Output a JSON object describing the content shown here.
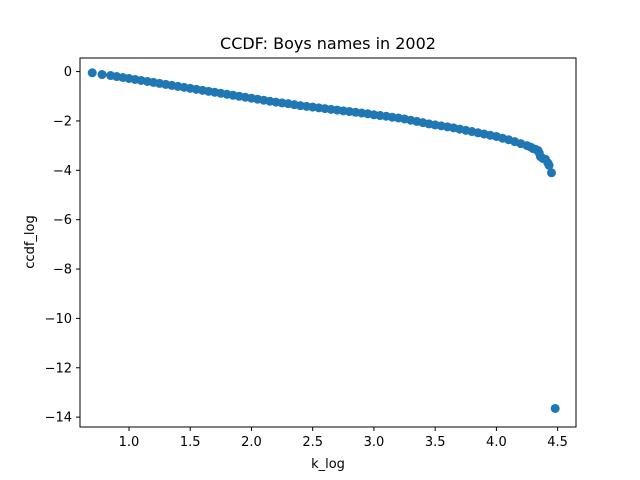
{
  "chart_data": {
    "type": "scatter",
    "title": "CCDF: Boys names in 2002",
    "xlabel": "k_log",
    "ylabel": "ccdf_log",
    "xlim": [
      0.6,
      4.65
    ],
    "ylim": [
      -14.4,
      0.55
    ],
    "xticks": [
      1.0,
      1.5,
      2.0,
      2.5,
      3.0,
      3.5,
      4.0,
      4.5
    ],
    "xtick_labels": [
      "1.0",
      "1.5",
      "2.0",
      "2.5",
      "3.0",
      "3.5",
      "4.0",
      "4.5"
    ],
    "yticks": [
      0,
      -2,
      -4,
      -6,
      -8,
      -10,
      -12,
      -14
    ],
    "ytick_labels": [
      "0",
      "−2",
      "−4",
      "−6",
      "−8",
      "−10",
      "−12",
      "−14"
    ],
    "grid": false,
    "marker_color": "#1f77b4",
    "series": [
      {
        "x": [
          0.7,
          0.78,
          0.85,
          0.9,
          0.95,
          1.0,
          1.05,
          1.1,
          1.15,
          1.2,
          1.25,
          1.3,
          1.35,
          1.4,
          1.45,
          1.5,
          1.55,
          1.6,
          1.65,
          1.7,
          1.75,
          1.8,
          1.85,
          1.9,
          1.95,
          2.0,
          2.05,
          2.1,
          2.15,
          2.2,
          2.25,
          2.3,
          2.35,
          2.4,
          2.45,
          2.5,
          2.55,
          2.6,
          2.65,
          2.7,
          2.75,
          2.8,
          2.85,
          2.9,
          2.95,
          3.0,
          3.05,
          3.1,
          3.15,
          3.2,
          3.25,
          3.3,
          3.35,
          3.4,
          3.45,
          3.5,
          3.55,
          3.6,
          3.65,
          3.7,
          3.75,
          3.8,
          3.85,
          3.9,
          3.95,
          4.0,
          4.05,
          4.1,
          4.15,
          4.2,
          4.25,
          4.28,
          4.3,
          4.32,
          4.34,
          4.35,
          4.36,
          4.38,
          4.4,
          4.42,
          4.43,
          4.45,
          4.48
        ],
        "y": [
          -0.05,
          -0.12,
          -0.16,
          -0.2,
          -0.24,
          -0.28,
          -0.32,
          -0.36,
          -0.4,
          -0.44,
          -0.48,
          -0.52,
          -0.56,
          -0.6,
          -0.64,
          -0.68,
          -0.72,
          -0.76,
          -0.8,
          -0.84,
          -0.88,
          -0.92,
          -0.96,
          -1.0,
          -1.04,
          -1.08,
          -1.12,
          -1.16,
          -1.2,
          -1.24,
          -1.27,
          -1.3,
          -1.34,
          -1.38,
          -1.41,
          -1.44,
          -1.47,
          -1.5,
          -1.53,
          -1.56,
          -1.59,
          -1.62,
          -1.65,
          -1.68,
          -1.71,
          -1.75,
          -1.78,
          -1.81,
          -1.85,
          -1.88,
          -1.92,
          -1.97,
          -2.02,
          -2.07,
          -2.12,
          -2.16,
          -2.2,
          -2.24,
          -2.28,
          -2.33,
          -2.38,
          -2.43,
          -2.48,
          -2.53,
          -2.58,
          -2.63,
          -2.7,
          -2.76,
          -2.84,
          -2.92,
          -3.0,
          -3.06,
          -3.12,
          -3.15,
          -3.2,
          -3.3,
          -3.45,
          -3.52,
          -3.55,
          -3.7,
          -3.8,
          -4.1,
          -13.65
        ]
      }
    ]
  }
}
